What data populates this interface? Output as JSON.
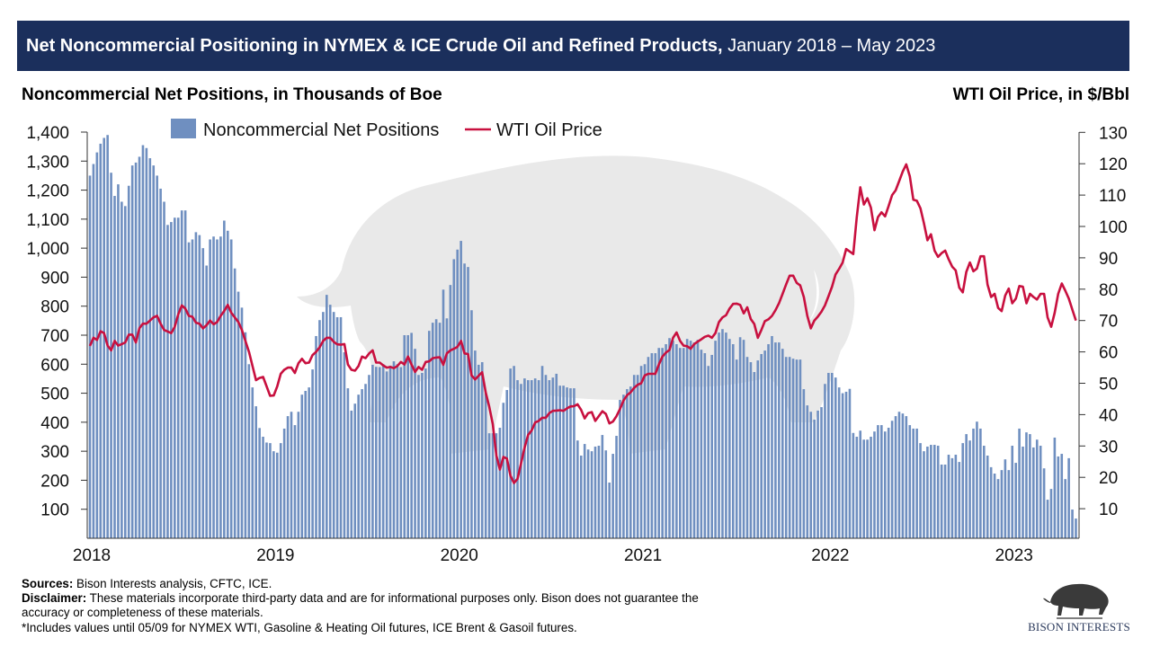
{
  "header": {
    "title_bold": "Net Noncommercial Positioning in NYMEX & ICE Crude Oil and Refined Products,",
    "title_rest": " January 2018 – May 2023"
  },
  "chart_data": {
    "type": "bar+line",
    "left_axis_title": "Noncommercial Net Positions, in Thousands of Boe",
    "right_axis_title": "WTI Oil Price, in $/Bbl",
    "frequency": "weekly",
    "x_range": [
      "January 2018",
      "May 2023"
    ],
    "x_ticks": [
      {
        "label": "2018",
        "week": 0
      },
      {
        "label": "2019",
        "week": 52
      },
      {
        "label": "2020",
        "week": 104
      },
      {
        "label": "2021",
        "week": 156
      },
      {
        "label": "2022",
        "week": 209
      },
      {
        "label": "2023",
        "week": 261
      }
    ],
    "left_ylim": [
      0,
      1400
    ],
    "left_ticks": [
      "100",
      "200",
      "300",
      "400",
      "500",
      "600",
      "700",
      "800",
      "900",
      "1,000",
      "1,100",
      "1,200",
      "1,300",
      "1,400"
    ],
    "right_ylim": [
      0,
      130
    ],
    "right_ticks": [
      "10",
      "20",
      "30",
      "40",
      "50",
      "60",
      "70",
      "80",
      "90",
      "100",
      "110",
      "120",
      "130"
    ],
    "grid": false,
    "legend_position": "top-center",
    "series": [
      {
        "name": "Noncommercial Net Positions",
        "kind": "bar",
        "axis": "left",
        "color": "#6f8fc0",
        "values": [
          1250,
          1290,
          1330,
          1360,
          1380,
          1390,
          1260,
          1180,
          1220,
          1160,
          1145,
          1215,
          1285,
          1295,
          1315,
          1355,
          1345,
          1310,
          1285,
          1250,
          1205,
          1160,
          1080,
          1090,
          1105,
          1105,
          1130,
          1130,
          1020,
          1030,
          1055,
          1045,
          1000,
          940,
          1030,
          1040,
          1030,
          1040,
          1095,
          1060,
          1030,
          930,
          850,
          795,
          710,
          600,
          520,
          455,
          380,
          350,
          330,
          328,
          300,
          295,
          328,
          378,
          421,
          436,
          390,
          436,
          495,
          508,
          520,
          582,
          697,
          752,
          780,
          839,
          805,
          780,
          762,
          762,
          641,
          517,
          440,
          464,
          495,
          514,
          532,
          563,
          598,
          591,
          590,
          600,
          575,
          595,
          610,
          600,
          590,
          700,
          700,
          708,
          653,
          563,
          570,
          585,
          715,
          743,
          755,
          743,
          857,
          758,
          873,
          962,
          995,
          1025,
          947,
          935,
          786,
          647,
          598,
          607,
          500,
          362,
          362,
          362,
          381,
          467,
          511,
          585,
          594,
          545,
          532,
          551,
          545,
          545,
          551,
          545,
          594,
          563,
          545,
          554,
          567,
          526,
          526,
          520,
          517,
          517,
          337,
          285,
          325,
          306,
          300,
          316,
          319,
          356,
          303,
          192,
          291,
          353,
          477,
          495,
          514,
          523,
          563,
          563,
          594,
          600,
          625,
          638,
          638,
          656,
          656,
          669,
          690,
          681,
          669,
          656,
          656,
          687,
          681,
          675,
          684,
          650,
          638,
          594,
          632,
          681,
          709,
          721,
          709,
          687,
          669,
          616,
          693,
          684,
          625,
          607,
          573,
          613,
          635,
          647,
          669,
          697,
          675,
          675,
          653,
          625,
          625,
          619,
          616,
          616,
          514,
          458,
          436,
          409,
          440,
          452,
          532,
          570,
          570,
          554,
          520,
          500,
          505,
          515,
          363,
          350,
          371,
          340,
          340,
          350,
          368,
          390,
          390,
          368,
          381,
          405,
          421,
          436,
          430,
          421,
          390,
          378,
          378,
          328,
          300,
          316,
          322,
          322,
          319,
          254,
          254,
          288,
          276,
          288,
          263,
          328,
          359,
          337,
          378,
          402,
          378,
          319,
          285,
          245,
          223,
          204,
          235,
          272,
          235,
          319,
          260,
          378,
          316,
          365,
          359,
          313,
          340,
          319,
          241,
          133,
          170,
          347,
          282,
          291,
          204,
          276,
          99,
          68
        ]
      },
      {
        "name": "WTI Oil Price",
        "kind": "line",
        "axis": "right",
        "color": "#c8103f",
        "values": [
          61.9,
          64.5,
          63.8,
          66.6,
          66.0,
          62,
          60.5,
          63.5,
          62,
          62.5,
          63,
          65.5,
          65.5,
          63,
          67.5,
          69,
          69,
          70,
          71,
          71.5,
          69,
          67,
          66.5,
          66,
          68,
          72,
          74.8,
          73.8,
          71.5,
          71.2,
          69.3,
          69,
          67.5,
          68.5,
          70,
          68.8,
          69.5,
          71.5,
          73,
          75,
          72.5,
          71,
          69.5,
          67,
          63.5,
          60,
          55.5,
          51,
          51.7,
          52,
          49,
          46,
          46.1,
          49,
          53,
          54.3,
          55,
          55,
          53.3,
          56.4,
          57.8,
          56.4,
          56.6,
          59,
          60,
          61.5,
          63.5,
          64.5,
          64.5,
          63.2,
          62.4,
          62.3,
          62.5,
          56,
          54.3,
          54,
          55.5,
          58.5,
          58,
          59.5,
          60.5,
          56.6,
          56.6,
          55.7,
          55,
          55.2,
          54.8,
          55.5,
          56.8,
          56,
          58.5,
          56,
          53.6,
          55.2,
          54.3,
          56.8,
          57,
          58,
          58.2,
          58.3,
          55.9,
          59.5,
          60.5,
          61,
          61.6,
          63.5,
          59.5,
          59.3,
          52.5,
          51.2,
          52.4,
          53.5,
          47,
          42.5,
          37,
          27,
          22.5,
          26.5,
          26,
          20.5,
          18.2,
          19.5,
          24.5,
          29.5,
          33.5,
          35,
          37.5,
          38,
          39,
          39,
          40.5,
          41.2,
          41.3,
          41.4,
          41.2,
          42,
          42.6,
          42.7,
          43.3,
          41.5,
          38.8,
          40.5,
          40.8,
          38,
          39.5,
          41.1,
          40.2,
          37.2,
          37.8,
          39.5,
          41.8,
          44.5,
          46.2,
          47.1,
          48.5,
          49.5,
          50,
          52.5,
          53,
          53,
          53,
          56,
          58.5,
          59.8,
          60.6,
          64.5,
          66.2,
          63.5,
          62,
          61.8,
          61,
          62.5,
          63.3,
          64,
          64.8,
          65.2,
          64.5,
          66,
          69.5,
          71,
          71.7,
          73.8,
          75.3,
          75.4,
          75,
          72.3,
          74.2,
          70.5,
          68.9,
          64.5,
          67,
          69.8,
          70.4,
          71.5,
          73.3,
          75.6,
          78.5,
          81.5,
          84.3,
          84.3,
          82,
          81.2,
          77.5,
          71.5,
          67.5,
          70,
          71.3,
          72.8,
          74.8,
          77.8,
          80.8,
          84.7,
          86.5,
          88.5,
          92.8,
          92,
          91.2,
          103,
          112.5,
          107,
          109,
          106,
          98.8,
          103,
          104.5,
          103.2,
          106.5,
          110,
          111.5,
          114.5,
          117.5,
          119.8,
          116,
          108.5,
          108.2,
          105.8,
          101,
          95.6,
          97.5,
          92.3,
          90.3,
          91.5,
          92.3,
          89.5,
          87.2,
          86,
          80.5,
          79,
          85.5,
          88.5,
          85.7,
          86.6,
          90.5,
          90.5,
          81.5,
          77.5,
          78.5,
          74,
          73,
          78,
          80.2,
          75.5,
          77,
          81,
          80.8,
          75.5,
          78.5,
          77.5,
          76.7,
          78.5,
          78.5,
          71,
          68,
          72.5,
          78.5,
          81.8,
          79.5,
          77,
          73.5,
          70
        ]
      }
    ]
  },
  "footer": {
    "sources_label": "Sources:",
    "sources_text": " Bison Interests analysis, CFTC, ICE.",
    "disclaimer_label": "Disclaimer:",
    "disclaimer_text": " These materials incorporate third-party data and are for informational purposes only. Bison does not guarantee the accuracy or completeness of these materials.",
    "note": "*Includes values until 05/09 for NYMEX WTI, Gasoline & Heating Oil futures, ICE Brent & Gasoil futures."
  },
  "logo": {
    "text": "BISON INTERESTS"
  }
}
